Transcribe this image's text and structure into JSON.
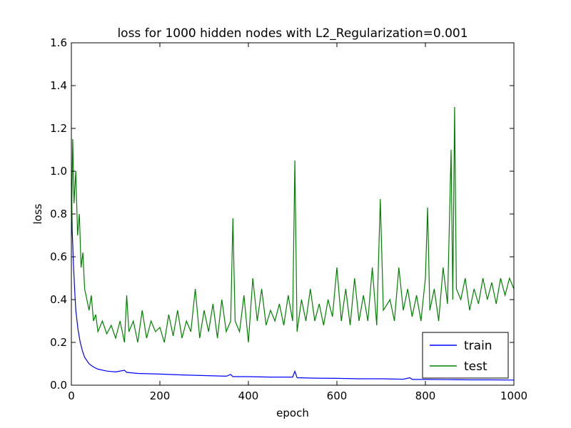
{
  "chart_data": {
    "type": "line",
    "title": "loss for 1000 hidden nodes with L2_Regularization=0.001",
    "xlabel": "epoch",
    "ylabel": "loss",
    "xlim": [
      0,
      1000
    ],
    "ylim": [
      0,
      1.6
    ],
    "xticks": [
      "0",
      "200",
      "400",
      "600",
      "800",
      "1000"
    ],
    "yticks": [
      "0.0",
      "0.2",
      "0.4",
      "0.6",
      "0.8",
      "1.0",
      "1.2",
      "1.4",
      "1.6"
    ],
    "grid": false,
    "legend_position": "lower-right",
    "series": [
      {
        "name": "train",
        "color": "#0000ff",
        "points": [
          [
            0,
            0.95
          ],
          [
            2,
            0.72
          ],
          [
            5,
            0.55
          ],
          [
            8,
            0.42
          ],
          [
            10,
            0.35
          ],
          [
            15,
            0.26
          ],
          [
            20,
            0.2
          ],
          [
            25,
            0.16
          ],
          [
            30,
            0.13
          ],
          [
            40,
            0.1
          ],
          [
            50,
            0.085
          ],
          [
            60,
            0.075
          ],
          [
            80,
            0.066
          ],
          [
            100,
            0.062
          ],
          [
            120,
            0.07
          ],
          [
            125,
            0.06
          ],
          [
            150,
            0.055
          ],
          [
            200,
            0.052
          ],
          [
            250,
            0.048
          ],
          [
            300,
            0.045
          ],
          [
            350,
            0.042
          ],
          [
            360,
            0.05
          ],
          [
            365,
            0.04
          ],
          [
            400,
            0.04
          ],
          [
            450,
            0.038
          ],
          [
            500,
            0.038
          ],
          [
            505,
            0.065
          ],
          [
            510,
            0.035
          ],
          [
            550,
            0.033
          ],
          [
            600,
            0.032
          ],
          [
            650,
            0.03
          ],
          [
            700,
            0.03
          ],
          [
            750,
            0.028
          ],
          [
            765,
            0.035
          ],
          [
            770,
            0.027
          ],
          [
            800,
            0.027
          ],
          [
            850,
            0.026
          ],
          [
            900,
            0.025
          ],
          [
            950,
            0.025
          ],
          [
            1000,
            0.024
          ]
        ]
      },
      {
        "name": "test",
        "color": "#008000",
        "points": [
          [
            0,
            0.7
          ],
          [
            3,
            1.15
          ],
          [
            6,
            0.85
          ],
          [
            10,
            1.0
          ],
          [
            14,
            0.7
          ],
          [
            18,
            0.8
          ],
          [
            22,
            0.55
          ],
          [
            26,
            0.62
          ],
          [
            30,
            0.45
          ],
          [
            35,
            0.4
          ],
          [
            40,
            0.35
          ],
          [
            45,
            0.42
          ],
          [
            50,
            0.3
          ],
          [
            55,
            0.33
          ],
          [
            60,
            0.25
          ],
          [
            70,
            0.3
          ],
          [
            80,
            0.24
          ],
          [
            90,
            0.28
          ],
          [
            100,
            0.22
          ],
          [
            110,
            0.3
          ],
          [
            120,
            0.2
          ],
          [
            125,
            0.42
          ],
          [
            130,
            0.25
          ],
          [
            140,
            0.3
          ],
          [
            150,
            0.2
          ],
          [
            160,
            0.35
          ],
          [
            170,
            0.22
          ],
          [
            180,
            0.3
          ],
          [
            190,
            0.25
          ],
          [
            200,
            0.27
          ],
          [
            210,
            0.2
          ],
          [
            220,
            0.33
          ],
          [
            230,
            0.23
          ],
          [
            240,
            0.35
          ],
          [
            250,
            0.22
          ],
          [
            260,
            0.3
          ],
          [
            270,
            0.25
          ],
          [
            280,
            0.45
          ],
          [
            290,
            0.22
          ],
          [
            300,
            0.35
          ],
          [
            310,
            0.25
          ],
          [
            320,
            0.38
          ],
          [
            330,
            0.22
          ],
          [
            340,
            0.4
          ],
          [
            350,
            0.25
          ],
          [
            360,
            0.3
          ],
          [
            365,
            0.78
          ],
          [
            370,
            0.3
          ],
          [
            380,
            0.25
          ],
          [
            390,
            0.42
          ],
          [
            400,
            0.2
          ],
          [
            410,
            0.5
          ],
          [
            420,
            0.3
          ],
          [
            430,
            0.45
          ],
          [
            440,
            0.28
          ],
          [
            450,
            0.35
          ],
          [
            460,
            0.3
          ],
          [
            470,
            0.38
          ],
          [
            480,
            0.28
          ],
          [
            490,
            0.42
          ],
          [
            500,
            0.3
          ],
          [
            505,
            1.05
          ],
          [
            510,
            0.25
          ],
          [
            520,
            0.4
          ],
          [
            530,
            0.3
          ],
          [
            540,
            0.45
          ],
          [
            550,
            0.3
          ],
          [
            560,
            0.38
          ],
          [
            570,
            0.28
          ],
          [
            580,
            0.4
          ],
          [
            590,
            0.32
          ],
          [
            600,
            0.55
          ],
          [
            610,
            0.3
          ],
          [
            620,
            0.45
          ],
          [
            630,
            0.28
          ],
          [
            640,
            0.5
          ],
          [
            650,
            0.3
          ],
          [
            660,
            0.42
          ],
          [
            670,
            0.3
          ],
          [
            680,
            0.55
          ],
          [
            690,
            0.28
          ],
          [
            698,
            0.87
          ],
          [
            705,
            0.35
          ],
          [
            720,
            0.4
          ],
          [
            730,
            0.3
          ],
          [
            740,
            0.55
          ],
          [
            750,
            0.35
          ],
          [
            760,
            0.45
          ],
          [
            770,
            0.32
          ],
          [
            780,
            0.42
          ],
          [
            790,
            0.3
          ],
          [
            800,
            0.5
          ],
          [
            805,
            0.83
          ],
          [
            810,
            0.35
          ],
          [
            820,
            0.45
          ],
          [
            830,
            0.3
          ],
          [
            840,
            0.55
          ],
          [
            850,
            0.38
          ],
          [
            858,
            1.1
          ],
          [
            862,
            0.4
          ],
          [
            866,
            1.3
          ],
          [
            870,
            0.45
          ],
          [
            880,
            0.4
          ],
          [
            890,
            0.5
          ],
          [
            900,
            0.35
          ],
          [
            910,
            0.45
          ],
          [
            920,
            0.38
          ],
          [
            930,
            0.5
          ],
          [
            940,
            0.4
          ],
          [
            950,
            0.48
          ],
          [
            960,
            0.38
          ],
          [
            970,
            0.5
          ],
          [
            980,
            0.42
          ],
          [
            990,
            0.5
          ],
          [
            1000,
            0.45
          ]
        ]
      }
    ]
  }
}
